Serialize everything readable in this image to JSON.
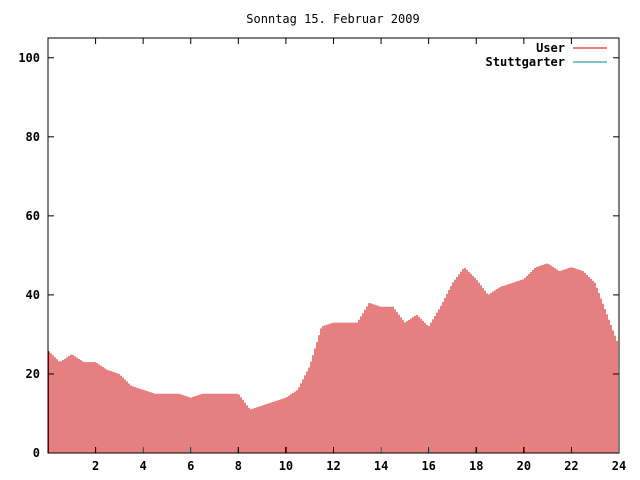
{
  "chart_data": {
    "type": "bar",
    "title": "Sonntag 15. Februar 2009",
    "xlim": [
      0,
      24
    ],
    "ylim": [
      0,
      105
    ],
    "x_ticks": [
      2,
      4,
      6,
      8,
      10,
      12,
      14,
      16,
      18,
      20,
      22,
      24
    ],
    "x_tick_labels": [
      "2",
      "4",
      "6",
      "8",
      "10",
      "12",
      "14",
      "16",
      "18",
      "20",
      "22",
      "24"
    ],
    "y_ticks": [
      0,
      20,
      40,
      60,
      80,
      100
    ],
    "y_tick_labels": [
      "0",
      "20",
      "40",
      "60",
      "80",
      "100"
    ],
    "legend_position": "top-right",
    "colors": {
      "user": "#cc0000",
      "stuttgarter": "#008b8b",
      "frame": "#000000"
    },
    "series": [
      {
        "name": "User",
        "color": "#cc0000",
        "x": [
          0.0,
          0.5,
          1.0,
          1.5,
          2.0,
          2.5,
          3.0,
          3.5,
          4.0,
          4.5,
          5.0,
          5.5,
          6.0,
          6.5,
          7.0,
          7.5,
          8.0,
          8.5,
          9.0,
          9.5,
          10.0,
          10.5,
          11.0,
          11.5,
          12.0,
          12.5,
          13.0,
          13.5,
          14.0,
          14.5,
          15.0,
          15.5,
          16.0,
          16.5,
          17.0,
          17.5,
          18.0,
          18.5,
          19.0,
          19.5,
          20.0,
          20.5,
          21.0,
          21.5,
          22.0,
          22.5,
          23.0,
          23.5,
          24.0
        ],
        "values": [
          26,
          23,
          25,
          23,
          23,
          21,
          20,
          17,
          16,
          15,
          15,
          15,
          14,
          15,
          15,
          15,
          15,
          11,
          12,
          13,
          14,
          16,
          22,
          32,
          33,
          33,
          33,
          38,
          37,
          37,
          33,
          35,
          32,
          37,
          43,
          47,
          44,
          40,
          42,
          43,
          44,
          47,
          48,
          46,
          47,
          46,
          43,
          35,
          27
        ]
      },
      {
        "name": "Stuttgarter",
        "color": "#008b8b",
        "x": [],
        "values": []
      }
    ]
  }
}
